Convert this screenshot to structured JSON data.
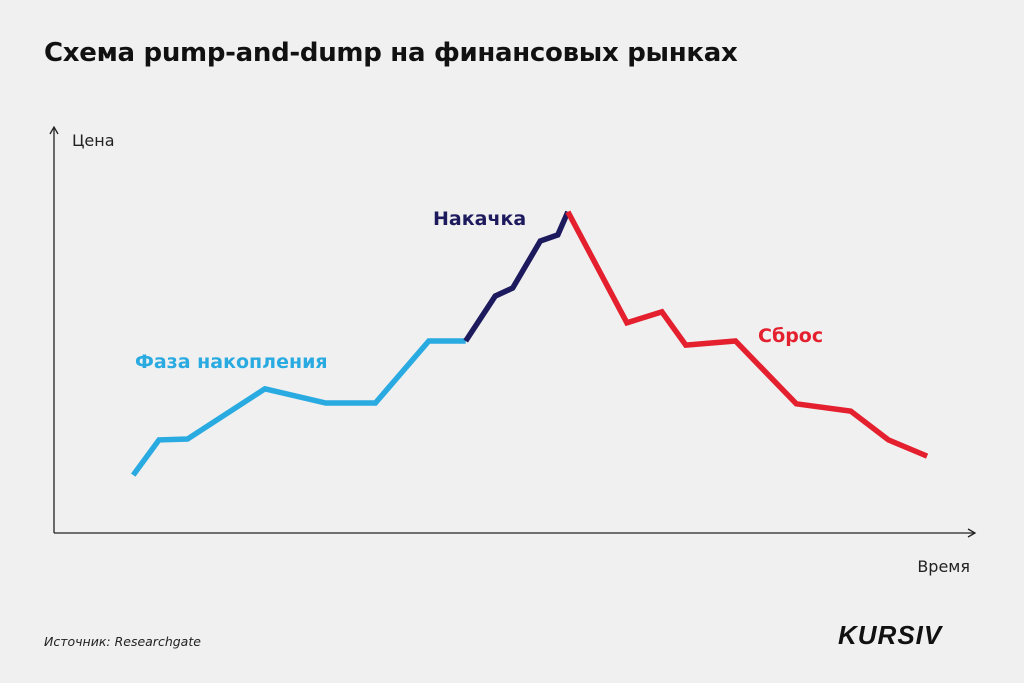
{
  "title": "Схема pump-and-dump на финансовых рынках",
  "source": "Источник: Researchgate",
  "logo": "KURSIV",
  "chart_data": {
    "type": "line",
    "title": "Схема pump-and-dump на финансовых рынках",
    "xlabel": "Время",
    "ylabel": "Цена",
    "xlim": [
      0,
      100
    ],
    "ylim": [
      0,
      100
    ],
    "grid": false,
    "axis_ticks": false,
    "series": [
      {
        "name": "Фаза накопления",
        "color": "#29aae1",
        "x": [
          8.6,
          11.4,
          14.5,
          22.9,
          29.5,
          34.9,
          40.7,
          44.7
        ],
        "y": [
          14.3,
          23.0,
          23.2,
          35.6,
          32.1,
          32.1,
          47.4,
          47.4
        ]
      },
      {
        "name": "Накачка",
        "color": "#1e1a5e",
        "x": [
          44.7,
          47.9,
          49.8,
          52.8,
          54.7,
          55.8
        ],
        "y": [
          47.4,
          58.5,
          60.5,
          72.1,
          73.6,
          79.3
        ]
      },
      {
        "name": "Сброс",
        "color": "#e4202e",
        "x": [
          55.8,
          62.2,
          66.0,
          68.6,
          74.0,
          80.6,
          86.5,
          90.6,
          94.8
        ],
        "y": [
          79.3,
          51.9,
          54.6,
          46.4,
          47.4,
          31.9,
          30.1,
          23.0,
          19.0
        ]
      }
    ]
  }
}
